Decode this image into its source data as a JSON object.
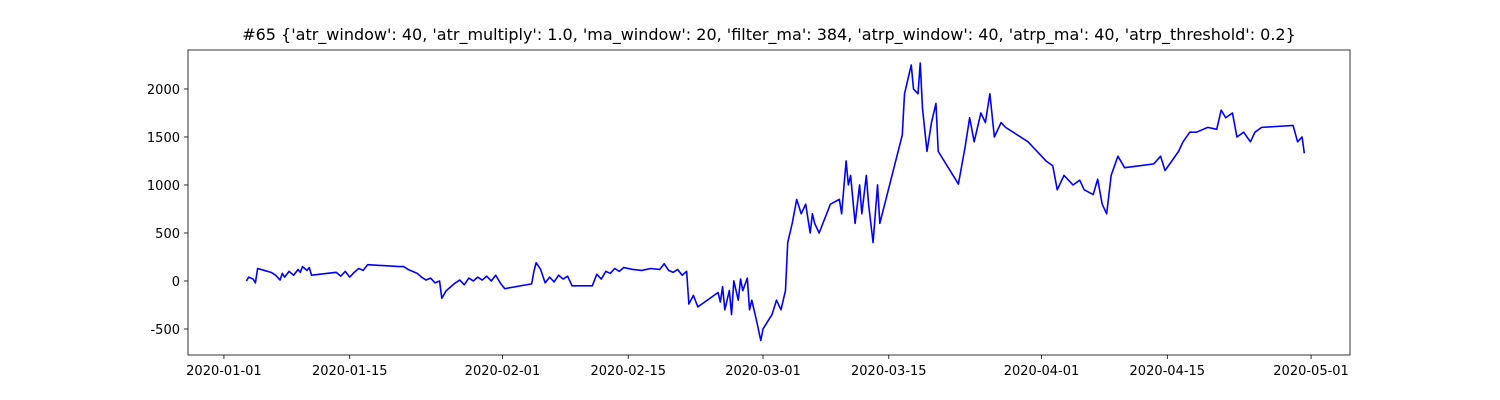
{
  "chart_data": {
    "type": "line",
    "title": "#65 {'atr_window': 40, 'atr_multiply': 1.0, 'ma_window': 20, 'filter_ma': 384, 'atrp_window': 40, 'atrp_ma': 40, 'atrp_threshold': 0.2}",
    "color": "#0000ff",
    "xlim": [
      "2019-12-28 00:00",
      "2020-05-05 08:00"
    ],
    "xticks": [
      "2020-01-01",
      "2020-01-15",
      "2020-02-01",
      "2020-02-15",
      "2020-03-01",
      "2020-03-15",
      "2020-04-01",
      "2020-04-15",
      "2020-05-01"
    ],
    "ylim": [
      -771,
      2406
    ],
    "yticks": [
      -500,
      0,
      500,
      1000,
      1500,
      2000
    ],
    "x": [
      "2020-01-03 12:00",
      "2020-01-03 18:00",
      "2020-01-04 06:00",
      "2020-01-04 12:00",
      "2020-01-04 18:00",
      "2020-01-05 12:00",
      "2020-01-06 06:00",
      "2020-01-06 18:00",
      "2020-01-07 06:00",
      "2020-01-07 12:00",
      "2020-01-07 18:00",
      "2020-01-08 06:00",
      "2020-01-08 18:00",
      "2020-01-09 06:00",
      "2020-01-09 12:00",
      "2020-01-09 18:00",
      "2020-01-10 06:00",
      "2020-01-10 12:00",
      "2020-01-10 18:00",
      "2020-01-13 12:00",
      "2020-01-14 00:00",
      "2020-01-14 12:00",
      "2020-01-15 00:00",
      "2020-01-15 12:00",
      "2020-01-16 00:00",
      "2020-01-16 12:00",
      "2020-01-17 00:00",
      "2020-01-20 12:00",
      "2020-01-21 00:00",
      "2020-01-21 12:00",
      "2020-01-22 00:00",
      "2020-01-22 12:00",
      "2020-01-23 00:00",
      "2020-01-23 12:00",
      "2020-01-24 00:00",
      "2020-01-24 12:00",
      "2020-01-25 00:00",
      "2020-01-25 06:00",
      "2020-01-25 18:00",
      "2020-01-26 06:00",
      "2020-01-26 18:00",
      "2020-01-27 06:00",
      "2020-01-27 18:00",
      "2020-01-28 06:00",
      "2020-01-28 18:00",
      "2020-01-29 06:00",
      "2020-01-29 18:00",
      "2020-01-30 06:00",
      "2020-01-30 18:00",
      "2020-01-31 06:00",
      "2020-01-31 18:00",
      "2020-02-01 06:00",
      "2020-02-04 06:00",
      "2020-02-04 12:00",
      "2020-02-04 18:00",
      "2020-02-05 06:00",
      "2020-02-05 18:00",
      "2020-02-06 06:00",
      "2020-02-06 18:00",
      "2020-02-07 06:00",
      "2020-02-07 18:00",
      "2020-02-08 06:00",
      "2020-02-08 18:00",
      "2020-02-11 00:00",
      "2020-02-11 12:00",
      "2020-02-12 00:00",
      "2020-02-12 12:00",
      "2020-02-13 00:00",
      "2020-02-13 12:00",
      "2020-02-14 00:00",
      "2020-02-14 12:00",
      "2020-02-15 12:00",
      "2020-02-16 12:00",
      "2020-02-17 12:00",
      "2020-02-18 12:00",
      "2020-02-19 00:00",
      "2020-02-19 12:00",
      "2020-02-20 00:00",
      "2020-02-20 12:00",
      "2020-02-21 00:00",
      "2020-02-21 12:00",
      "2020-02-21 18:00",
      "2020-02-22 06:00",
      "2020-02-22 18:00",
      "2020-02-25 00:00",
      "2020-02-25 06:00",
      "2020-02-25 12:00",
      "2020-02-25 18:00",
      "2020-02-26 06:00",
      "2020-02-26 12:00",
      "2020-02-26 18:00",
      "2020-02-27 06:00",
      "2020-02-27 12:00",
      "2020-02-27 18:00",
      "2020-02-28 06:00",
      "2020-02-28 12:00",
      "2020-02-28 18:00",
      "2020-02-29 06:00",
      "2020-02-29 18:00",
      "2020-03-01 00:00",
      "2020-03-02 00:00",
      "2020-03-02 12:00",
      "2020-03-03 00:00",
      "2020-03-03 12:00",
      "2020-03-03 18:00",
      "2020-03-04 06:00",
      "2020-03-04 18:00",
      "2020-03-05 06:00",
      "2020-03-05 18:00",
      "2020-03-06 06:00",
      "2020-03-06 12:00",
      "2020-03-06 18:00",
      "2020-03-07 06:00",
      "2020-03-08 12:00",
      "2020-03-09 12:00",
      "2020-03-09 18:00",
      "2020-03-10 06:00",
      "2020-03-10 12:00",
      "2020-03-10 18:00",
      "2020-03-11 06:00",
      "2020-03-11 18:00",
      "2020-03-12 00:00",
      "2020-03-12 12:00",
      "2020-03-12 18:00",
      "2020-03-13 06:00",
      "2020-03-13 18:00",
      "2020-03-14 00:00",
      "2020-03-16 12:00",
      "2020-03-16 18:00",
      "2020-03-17 06:00",
      "2020-03-17 12:00",
      "2020-03-17 18:00",
      "2020-03-18 06:00",
      "2020-03-18 12:00",
      "2020-03-18 18:00",
      "2020-03-19 06:00",
      "2020-03-19 18:00",
      "2020-03-20 06:00",
      "2020-03-20 12:00",
      "2020-03-22 18:00",
      "2020-03-23 12:00",
      "2020-03-24 00:00",
      "2020-03-24 12:00",
      "2020-03-25 06:00",
      "2020-03-25 18:00",
      "2020-03-26 06:00",
      "2020-03-26 18:00",
      "2020-03-27 12:00",
      "2020-03-28 00:00",
      "2020-03-30 12:00",
      "2020-03-31 12:00",
      "2020-04-01 12:00",
      "2020-04-02 06:00",
      "2020-04-02 18:00",
      "2020-04-03 12:00",
      "2020-04-04 12:00",
      "2020-04-05 06:00",
      "2020-04-05 18:00",
      "2020-04-06 18:00",
      "2020-04-07 06:00",
      "2020-04-07 18:00",
      "2020-04-08 06:00",
      "2020-04-08 18:00",
      "2020-04-09 12:00",
      "2020-04-10 06:00",
      "2020-04-13 12:00",
      "2020-04-14 06:00",
      "2020-04-14 18:00",
      "2020-04-15 12:00",
      "2020-04-16 06:00",
      "2020-04-16 18:00",
      "2020-04-17 12:00",
      "2020-04-18 06:00",
      "2020-04-19 12:00",
      "2020-04-20 12:00",
      "2020-04-21 00:00",
      "2020-04-21 12:00",
      "2020-04-22 06:00",
      "2020-04-22 18:00",
      "2020-04-23 12:00",
      "2020-04-24 06:00",
      "2020-04-24 18:00",
      "2020-04-25 12:00",
      "2020-04-29 00:00",
      "2020-04-29 12:00",
      "2020-04-30 00:00",
      "2020-04-30 06:00"
    ],
    "values": [
      0,
      40,
      20,
      -20,
      130,
      110,
      90,
      60,
      10,
      80,
      40,
      100,
      60,
      120,
      90,
      150,
      110,
      140,
      60,
      90,
      50,
      100,
      40,
      90,
      130,
      110,
      170,
      150,
      150,
      120,
      100,
      80,
      40,
      10,
      30,
      -20,
      0,
      -180,
      -100,
      -60,
      -20,
      10,
      -40,
      30,
      0,
      40,
      10,
      50,
      0,
      60,
      -20,
      -80,
      -30,
      100,
      190,
      120,
      -20,
      40,
      -10,
      60,
      20,
      50,
      -50,
      -50,
      70,
      20,
      100,
      80,
      130,
      100,
      140,
      120,
      110,
      130,
      120,
      180,
      110,
      90,
      120,
      60,
      100,
      -240,
      -150,
      -270,
      -120,
      -220,
      -60,
      -300,
      -100,
      -350,
      0,
      -200,
      20,
      -100,
      30,
      -300,
      -200,
      -400,
      -620,
      -500,
      -350,
      -200,
      -300,
      -100,
      400,
      600,
      850,
      700,
      800,
      500,
      700,
      600,
      500,
      800,
      850,
      700,
      1250,
      1000,
      1100,
      600,
      1000,
      700,
      1100,
      800,
      400,
      1000,
      600,
      1520,
      1950,
      2150,
      2250,
      2000,
      1950,
      2270,
      1800,
      1350,
      1650,
      1850,
      1350,
      1010,
      1400,
      1700,
      1450,
      1750,
      1650,
      1950,
      1500,
      1650,
      1600,
      1450,
      1350,
      1250,
      1200,
      950,
      1100,
      1000,
      1050,
      950,
      900,
      1060,
      800,
      700,
      1100,
      1300,
      1180,
      1220,
      1300,
      1150,
      1250,
      1350,
      1450,
      1550,
      1550,
      1600,
      1580,
      1780,
      1700,
      1750,
      1500,
      1550,
      1450,
      1550,
      1600,
      1620,
      1450,
      1500,
      1330
    ]
  }
}
